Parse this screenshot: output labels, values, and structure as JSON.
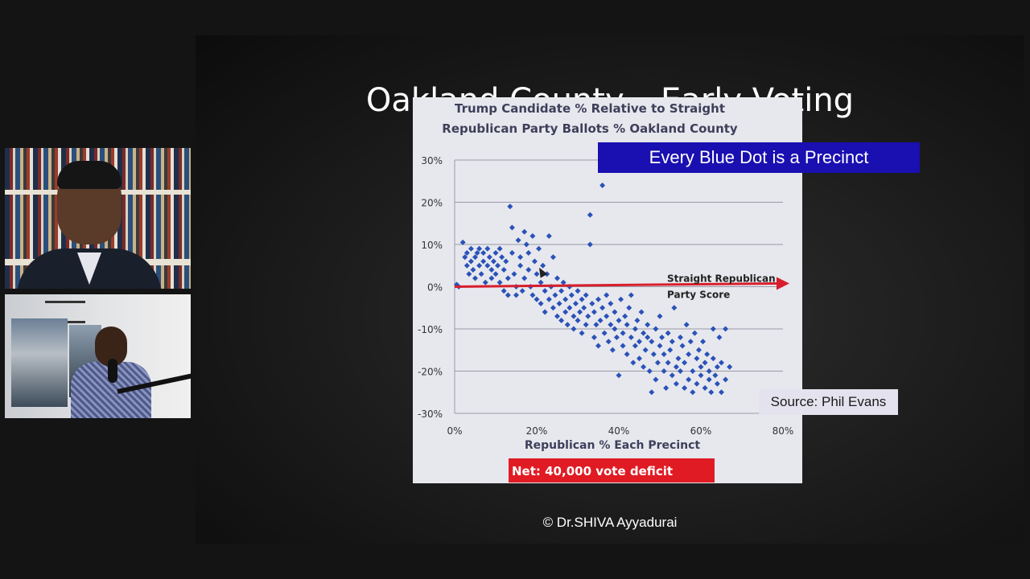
{
  "participants": [
    {
      "role": "presenter-video"
    },
    {
      "role": "host-video"
    }
  ],
  "slide": {
    "title": "Oakland County – Early Voting",
    "callout": "Every Blue Dot is a Precinct",
    "source": "Source: Phil Evans",
    "copyright": "© Dr.SHIVA Ayyadurai"
  },
  "chart_data": {
    "type": "scatter",
    "title_line1": "Trump Candidate % Relative to Straight",
    "title_line2": "Republican Party Ballots % Oakland County",
    "xlabel": "Republican % Each Precinct",
    "ylabel": "",
    "xlim": [
      0,
      80
    ],
    "ylim": [
      -30,
      30
    ],
    "x_ticks": [
      "0%",
      "20%",
      "40%",
      "60%",
      "80%"
    ],
    "y_ticks": [
      "30%",
      "20%",
      "10%",
      "0%",
      "-10%",
      "-20%",
      "-30%"
    ],
    "grid": true,
    "series_color": "#2a52b8",
    "points_note_in_chart": false,
    "annotation_line1": "Straight Republican",
    "annotation_line2": "Party Score",
    "footer_box": "Net:  40,000 vote deficit",
    "footer_box_color": "#e01b24",
    "points": [
      [
        0.5,
        0.5
      ],
      [
        1,
        0
      ],
      [
        2,
        10.5
      ],
      [
        2.5,
        7
      ],
      [
        3,
        5
      ],
      [
        3,
        8
      ],
      [
        3.5,
        3
      ],
      [
        4,
        9
      ],
      [
        4,
        6
      ],
      [
        4.5,
        4
      ],
      [
        5,
        7
      ],
      [
        5,
        2
      ],
      [
        5.5,
        8
      ],
      [
        6,
        5
      ],
      [
        6,
        9
      ],
      [
        6.5,
        3
      ],
      [
        7,
        6
      ],
      [
        7,
        8
      ],
      [
        7.5,
        1
      ],
      [
        8,
        5
      ],
      [
        8,
        9
      ],
      [
        8.5,
        7
      ],
      [
        9,
        4
      ],
      [
        9,
        2
      ],
      [
        9.5,
        6
      ],
      [
        10,
        8
      ],
      [
        10,
        3
      ],
      [
        10.5,
        5
      ],
      [
        11,
        1
      ],
      [
        11,
        9
      ],
      [
        11.5,
        7
      ],
      [
        12,
        4
      ],
      [
        12,
        -1
      ],
      [
        12.5,
        6
      ],
      [
        13,
        2
      ],
      [
        13,
        -2
      ],
      [
        13.5,
        19
      ],
      [
        14,
        14
      ],
      [
        14,
        8
      ],
      [
        14.5,
        3
      ],
      [
        15,
        0
      ],
      [
        15,
        -2
      ],
      [
        15.5,
        11
      ],
      [
        16,
        7
      ],
      [
        16,
        5
      ],
      [
        16.5,
        -1
      ],
      [
        17,
        2
      ],
      [
        17,
        13
      ],
      [
        17.5,
        10
      ],
      [
        18,
        8
      ],
      [
        18,
        4
      ],
      [
        18.5,
        0
      ],
      [
        19,
        -2
      ],
      [
        19,
        12
      ],
      [
        19.5,
        6
      ],
      [
        20,
        3
      ],
      [
        20,
        -3
      ],
      [
        20.5,
        9
      ],
      [
        21,
        1
      ],
      [
        21,
        -4
      ],
      [
        21.5,
        5
      ],
      [
        22,
        -1
      ],
      [
        22,
        -6
      ],
      [
        22.5,
        3
      ],
      [
        23,
        -3
      ],
      [
        23,
        12
      ],
      [
        23.5,
        0
      ],
      [
        24,
        -5
      ],
      [
        24,
        7
      ],
      [
        24.5,
        -2
      ],
      [
        25,
        -7
      ],
      [
        25,
        2
      ],
      [
        25.5,
        -4
      ],
      [
        26,
        -1
      ],
      [
        26,
        -8
      ],
      [
        26.5,
        1
      ],
      [
        27,
        -3
      ],
      [
        27,
        -6
      ],
      [
        27.5,
        -9
      ],
      [
        28,
        0
      ],
      [
        28,
        -5
      ],
      [
        28.5,
        -2
      ],
      [
        29,
        -7
      ],
      [
        29,
        -10
      ],
      [
        29.5,
        -4
      ],
      [
        30,
        -1
      ],
      [
        30,
        -8
      ],
      [
        30.5,
        -6
      ],
      [
        31,
        -3
      ],
      [
        31,
        -11
      ],
      [
        31.5,
        -5
      ],
      [
        32,
        -9
      ],
      [
        32,
        -2
      ],
      [
        32.5,
        -7
      ],
      [
        33,
        17
      ],
      [
        33,
        10
      ],
      [
        33.5,
        -4
      ],
      [
        34,
        -12
      ],
      [
        34,
        -6
      ],
      [
        34.5,
        -9
      ],
      [
        35,
        -3
      ],
      [
        35,
        -14
      ],
      [
        35.5,
        -8
      ],
      [
        36,
        24
      ],
      [
        36,
        -5
      ],
      [
        36.5,
        -11
      ],
      [
        37,
        -7
      ],
      [
        37,
        -2
      ],
      [
        37.5,
        -13
      ],
      [
        38,
        -9
      ],
      [
        38,
        -4
      ],
      [
        38.5,
        -15
      ],
      [
        39,
        -6
      ],
      [
        39,
        -10
      ],
      [
        39.5,
        -12
      ],
      [
        40,
        -21
      ],
      [
        40,
        -8
      ],
      [
        40.5,
        -3
      ],
      [
        41,
        -11
      ],
      [
        41,
        -14
      ],
      [
        41.5,
        -7
      ],
      [
        42,
        -9
      ],
      [
        42,
        -16
      ],
      [
        42.5,
        -5
      ],
      [
        43,
        -12
      ],
      [
        43,
        -2
      ],
      [
        43.5,
        -18
      ],
      [
        44,
        -10
      ],
      [
        44,
        -14
      ],
      [
        44.5,
        -8
      ],
      [
        45,
        -13
      ],
      [
        45,
        -17
      ],
      [
        45.5,
        -6
      ],
      [
        46,
        -11
      ],
      [
        46,
        -19
      ],
      [
        46.5,
        -15
      ],
      [
        47,
        -9
      ],
      [
        47,
        -12
      ],
      [
        47.5,
        -20
      ],
      [
        48,
        -13
      ],
      [
        48,
        -25
      ],
      [
        48.5,
        -16
      ],
      [
        49,
        -10
      ],
      [
        49,
        -22
      ],
      [
        49.5,
        -18
      ],
      [
        50,
        -14
      ],
      [
        50,
        -7
      ],
      [
        50.5,
        -12
      ],
      [
        51,
        -20
      ],
      [
        51,
        -16
      ],
      [
        51.5,
        -24
      ],
      [
        52,
        -11
      ],
      [
        52,
        -18
      ],
      [
        52.5,
        -15
      ],
      [
        53,
        -21
      ],
      [
        53,
        -13
      ],
      [
        53.5,
        -5
      ],
      [
        54,
        -19
      ],
      [
        54,
        -23
      ],
      [
        54.5,
        -17
      ],
      [
        55,
        -12
      ],
      [
        55,
        -20
      ],
      [
        55.5,
        -14
      ],
      [
        56,
        -24
      ],
      [
        56,
        -18
      ],
      [
        56.5,
        -9
      ],
      [
        57,
        -16
      ],
      [
        57,
        -22
      ],
      [
        57.5,
        -13
      ],
      [
        58,
        -20
      ],
      [
        58,
        -25
      ],
      [
        58.5,
        -11
      ],
      [
        59,
        -17
      ],
      [
        59,
        -23
      ],
      [
        59.5,
        -15
      ],
      [
        60,
        -19
      ],
      [
        60,
        -21
      ],
      [
        60.5,
        -13
      ],
      [
        61,
        -24
      ],
      [
        61,
        -18
      ],
      [
        61.5,
        -16
      ],
      [
        62,
        -22
      ],
      [
        62,
        -20
      ],
      [
        62.5,
        -25
      ],
      [
        63,
        -17
      ],
      [
        63,
        -10
      ],
      [
        63.5,
        -21
      ],
      [
        64,
        -19
      ],
      [
        64,
        -23
      ],
      [
        64.5,
        -12
      ],
      [
        65,
        -18
      ],
      [
        65,
        -25
      ],
      [
        66,
        -22
      ],
      [
        66,
        -10
      ],
      [
        67,
        -19
      ]
    ]
  }
}
